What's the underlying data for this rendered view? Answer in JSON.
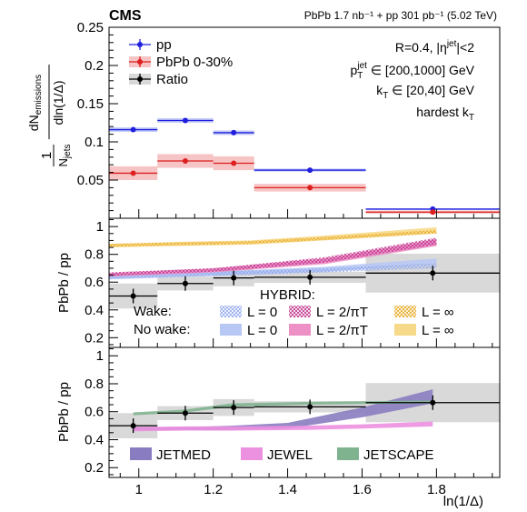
{
  "header": {
    "experiment": "CMS",
    "lumi": "PbPb 1.7 nb⁻¹ + pp 301 pb⁻¹ (5.02 TeV)"
  },
  "colors": {
    "pp": "#1f1fdd",
    "pbpb": "#dd1f1f",
    "ratio": "#000000",
    "wake_L0": "#8fa8ee",
    "wake_L2piT": "#c0308a",
    "wake_Linf": "#e8a820",
    "nowake_L0": "#b8c8f4",
    "nowake_L2piT": "#ec90c6",
    "nowake_Linf": "#f7d98a",
    "jetmed": "#8a7cc0",
    "jewel": "#ec90e0",
    "jetscape": "#7fb38f",
    "syst_ratio": "#d9d9d9"
  },
  "chart_data": [
    {
      "type": "scatter",
      "panel": "top",
      "ylabel": "1/N_jets dN_emissions/dln(1/Δ)",
      "ylim": [
        0,
        0.25
      ],
      "yticks": [
        "0.05",
        "0.1",
        "0.15",
        "0.2",
        "0.25"
      ],
      "xlim": [
        0.92,
        1.97
      ],
      "bins": [
        [
          0.92,
          1.05
        ],
        [
          1.05,
          1.2
        ],
        [
          1.2,
          1.31
        ],
        [
          1.31,
          1.61
        ],
        [
          1.61,
          1.97
        ]
      ],
      "series": [
        {
          "name": "pp",
          "x": [
            0.985,
            1.125,
            1.255,
            1.46,
            1.79
          ],
          "values": [
            0.116,
            0.128,
            0.112,
            0.063,
            0.012
          ],
          "syst": [
            0.003,
            0.003,
            0.003,
            0.002,
            0.001
          ]
        },
        {
          "name": "PbPb 0-30%",
          "x": [
            0.985,
            1.125,
            1.255,
            1.46,
            1.79
          ],
          "values": [
            0.059,
            0.075,
            0.072,
            0.04,
            0.008
          ],
          "syst": [
            0.009,
            0.009,
            0.009,
            0.005,
            0.002
          ]
        }
      ],
      "legend": [
        "pp",
        "PbPb 0-30%",
        "Ratio"
      ],
      "legend_position": "top-left",
      "annotations": [
        "R=0.4, |η^jet|<2",
        "p_T^jet ∈ [200,1000] GeV",
        "k_T ∈ [20,40] GeV",
        "hardest k_T"
      ]
    },
    {
      "type": "line",
      "panel": "middle",
      "ylabel": "PbPb / pp",
      "ylim": [
        0.13,
        1.06
      ],
      "yticks": [
        "0.2",
        "0.4",
        "0.6",
        "0.8",
        "1"
      ],
      "ratio": {
        "x": [
          0.985,
          1.125,
          1.255,
          1.46,
          1.79
        ],
        "values": [
          0.5,
          0.59,
          0.63,
          0.635,
          0.665
        ],
        "syst": [
          0.09,
          0.05,
          0.06,
          0.04,
          0.14
        ]
      },
      "model_header": "HYBRID:",
      "row_labels": [
        "Wake:",
        "No wake:"
      ],
      "model_labels": [
        "L = 0",
        "L = 2/πT",
        "L = ∞"
      ],
      "models": [
        {
          "key": "nowake_L0",
          "x": [
            0.92,
            1.2,
            1.5,
            1.8
          ],
          "lo": [
            0.62,
            0.645,
            0.675,
            0.73
          ],
          "hi": [
            0.65,
            0.675,
            0.71,
            0.77
          ]
        },
        {
          "key": "wake_L0",
          "x": [
            0.92,
            1.2,
            1.5,
            1.8
          ],
          "lo": [
            0.625,
            0.645,
            0.67,
            0.7
          ],
          "hi": [
            0.65,
            0.675,
            0.7,
            0.735
          ]
        },
        {
          "key": "nowake_L2piT",
          "x": [
            0.92,
            1.2,
            1.5,
            1.8
          ],
          "lo": [
            0.64,
            0.67,
            0.73,
            0.86
          ],
          "hi": [
            0.665,
            0.7,
            0.77,
            0.91
          ]
        },
        {
          "key": "wake_L2piT",
          "x": [
            0.92,
            1.2,
            1.5,
            1.8
          ],
          "lo": [
            0.645,
            0.675,
            0.74,
            0.87
          ],
          "hi": [
            0.67,
            0.7,
            0.78,
            0.92
          ]
        },
        {
          "key": "nowake_Linf",
          "x": [
            0.92,
            1.1,
            1.3,
            1.5,
            1.8
          ],
          "lo": [
            0.85,
            0.86,
            0.87,
            0.9,
            0.95
          ],
          "hi": [
            0.875,
            0.89,
            0.9,
            0.935,
            0.995
          ]
        },
        {
          "key": "wake_Linf",
          "x": [
            0.92,
            1.1,
            1.3,
            1.5,
            1.8
          ],
          "lo": [
            0.855,
            0.865,
            0.875,
            0.905,
            0.95
          ],
          "hi": [
            0.875,
            0.885,
            0.895,
            0.925,
            0.975
          ]
        }
      ]
    },
    {
      "type": "line",
      "panel": "bottom",
      "ylabel": "PbPb / pp",
      "ylim": [
        0.13,
        1.06
      ],
      "yticks": [
        "0.2",
        "0.4",
        "0.6",
        "0.8",
        "1"
      ],
      "xlabel": "ln(1/Δ)",
      "xticks": [
        "1",
        "1.2",
        "1.4",
        "1.6",
        "1.8"
      ],
      "ratio": {
        "x": [
          0.985,
          1.125,
          1.255,
          1.46,
          1.79
        ],
        "values": [
          0.5,
          0.59,
          0.63,
          0.635,
          0.665
        ],
        "syst": [
          0.09,
          0.05,
          0.06,
          0.04,
          0.14
        ]
      },
      "legend": [
        "JETMED",
        "JEWEL",
        "JETSCAPE"
      ],
      "models": [
        {
          "key": "jetmed",
          "x": [
            0.985,
            1.125,
            1.25,
            1.4,
            1.6,
            1.79
          ],
          "lo": [
            0.47,
            0.47,
            0.47,
            0.48,
            0.56,
            0.66
          ],
          "hi": [
            0.49,
            0.49,
            0.5,
            0.52,
            0.63,
            0.76
          ]
        },
        {
          "key": "jewel",
          "x": [
            0.985,
            1.125,
            1.25,
            1.45,
            1.6,
            1.79
          ],
          "lo": [
            0.46,
            0.465,
            0.465,
            0.47,
            0.48,
            0.495
          ],
          "hi": [
            0.49,
            0.495,
            0.495,
            0.5,
            0.51,
            0.53
          ]
        },
        {
          "key": "jetscape",
          "x": [
            0.985,
            1.125,
            1.25,
            1.45,
            1.6,
            1.79
          ],
          "lo": [
            0.575,
            0.595,
            0.635,
            0.65,
            0.655,
            0.66
          ],
          "hi": [
            0.595,
            0.615,
            0.66,
            0.67,
            0.675,
            0.68
          ]
        }
      ]
    }
  ]
}
